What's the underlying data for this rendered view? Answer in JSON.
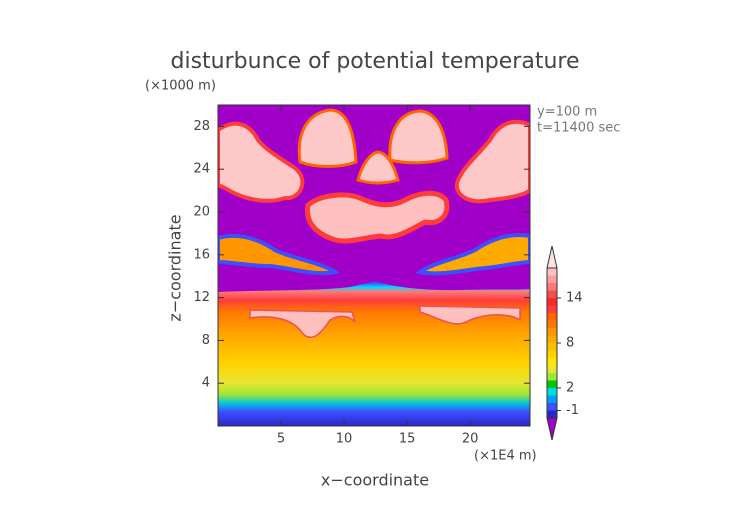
{
  "chart_data": {
    "type": "contour",
    "title": "disturbunce of potential temperature",
    "x_label": "x−coordinate",
    "y_label": "z−coordinate",
    "x_unit": "(×1E4 m)",
    "y_unit": "(×1000 m)",
    "annotations": [
      "y=100 m",
      "t=11400 sec"
    ],
    "xlim": [
      0,
      24.75
    ],
    "ylim": [
      0,
      30
    ],
    "xticks": [
      5,
      10,
      15,
      20
    ],
    "yticks": [
      4,
      8,
      12,
      16,
      20,
      24,
      28
    ],
    "colorbar": {
      "levels": [
        -2,
        -1,
        0,
        1,
        2,
        3,
        4,
        5,
        6,
        7,
        8,
        9,
        10,
        11,
        12,
        13,
        14,
        15,
        16,
        17,
        18
      ],
      "colors": [
        "#2828c8",
        "#3c50ff",
        "#00a0ff",
        "#00dcdc",
        "#00c800",
        "#a0e632",
        "#e6e632",
        "#ffe600",
        "#ffd200",
        "#ffbe00",
        "#ffaa00",
        "#ff9600",
        "#ff7800",
        "#ff6400",
        "#ff3c3c",
        "#ff2828",
        "#f05050",
        "#ff7878",
        "#ffa0a0",
        "#ffc0c0"
      ],
      "under_color": "#a000c8",
      "over_color": "#ffe0e0",
      "ticks": [
        -1,
        2,
        8,
        14
      ]
    }
  }
}
